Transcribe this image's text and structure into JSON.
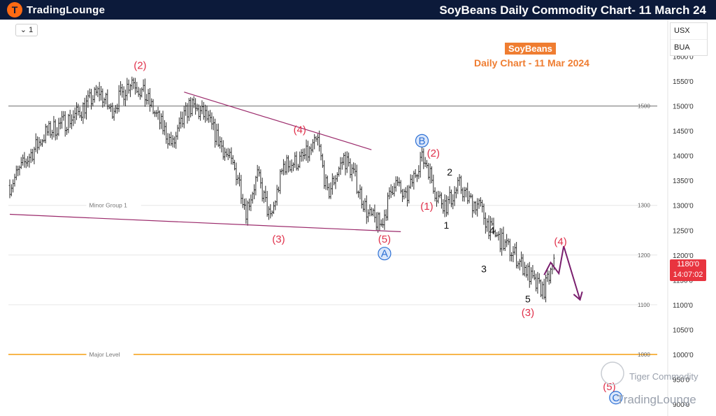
{
  "header": {
    "brand_badge": "T",
    "brand_name": "TradingLounge",
    "title": "SoyBeans Daily Commodity Chart- 11 March 24"
  },
  "toolbar": {
    "interval_label": "1",
    "currency": "USX",
    "source": "BUA"
  },
  "price_tag": {
    "price": "1180'0",
    "countdown": "14:07:02"
  },
  "annotation": {
    "title": "SoyBeans",
    "subtitle": "Daily Chart - 11 Mar 2024"
  },
  "watermark": {
    "line1": "Tiger Commodity",
    "line2": "TradingLounge"
  },
  "colors": {
    "candles": "#2b2b2b",
    "wave_red": "#e0304a",
    "wave_blue": "#2b6fd4",
    "wave_black": "#111111",
    "trendline": "#9b2a6b",
    "major_level": "#f5a623",
    "level_gray": "#8a8a8a",
    "arrow": "#7a1f6e"
  },
  "chart_data": {
    "type": "bar",
    "ylim": [
      885,
      1675
    ],
    "y_ticks": [
      {
        "v": 1650,
        "label": "1650"
      },
      {
        "v": 1600,
        "label": "1600'0"
      },
      {
        "v": 1550,
        "label": "1550'0"
      },
      {
        "v": 1500,
        "label": "1500'0"
      },
      {
        "v": 1450,
        "label": "1450'0"
      },
      {
        "v": 1400,
        "label": "1400'0"
      },
      {
        "v": 1350,
        "label": "1350'0"
      },
      {
        "v": 1300,
        "label": "1300'0"
      },
      {
        "v": 1250,
        "label": "1250'0"
      },
      {
        "v": 1200,
        "label": "1200'0"
      },
      {
        "v": 1150,
        "label": "1150'0"
      },
      {
        "v": 1100,
        "label": "1100'0"
      },
      {
        "v": 1050,
        "label": "1050'0"
      },
      {
        "v": 1000,
        "label": "1000'0"
      },
      {
        "v": 950,
        "label": "950'0"
      },
      {
        "v": 900,
        "label": "900'0"
      }
    ],
    "levels": [
      {
        "name": "",
        "value": 1500,
        "kind": "gray",
        "right_label": "1500",
        "label_bar": 38
      },
      {
        "name": "Minor Group 1",
        "value": 1300,
        "kind": "faint",
        "right_label": "1300",
        "label_bar": 38
      },
      {
        "name": "",
        "value": 1200,
        "kind": "faint",
        "right_label": "1200",
        "label_bar": 0
      },
      {
        "name": "",
        "value": 1100,
        "kind": "faint",
        "right_label": "1100",
        "label_bar": 0
      },
      {
        "name": "Major Level",
        "value": 1000,
        "kind": "major",
        "right_label": "1000",
        "label_bar": 38
      }
    ],
    "ohlc": {
      "start_bar": 0,
      "bar_step": 2.33,
      "key_closes": [
        [
          0,
          1340
        ],
        [
          10,
          1390
        ],
        [
          22,
          1445
        ],
        [
          40,
          1480
        ],
        [
          55,
          1530
        ],
        [
          62,
          1490
        ],
        [
          75,
          1555
        ],
        [
          85,
          1510
        ],
        [
          100,
          1420
        ],
        [
          105,
          1460
        ],
        [
          110,
          1500
        ],
        [
          120,
          1480
        ],
        [
          130,
          1420
        ],
        [
          140,
          1360
        ],
        [
          145,
          1290
        ],
        [
          152,
          1360
        ],
        [
          160,
          1270
        ],
        [
          168,
          1380
        ],
        [
          178,
          1390
        ],
        [
          185,
          1410
        ],
        [
          189,
          1430
        ],
        [
          195,
          1320
        ],
        [
          200,
          1360
        ],
        [
          205,
          1395
        ],
        [
          210,
          1370
        ],
        [
          220,
          1280
        ],
        [
          228,
          1260
        ],
        [
          236,
          1350
        ],
        [
          243,
          1310
        ],
        [
          252,
          1395
        ],
        [
          256,
          1385
        ],
        [
          262,
          1320
        ],
        [
          268,
          1300
        ],
        [
          276,
          1340
        ],
        [
          282,
          1310
        ],
        [
          288,
          1300
        ],
        [
          295,
          1250
        ],
        [
          304,
          1220
        ],
        [
          310,
          1200
        ],
        [
          318,
          1165
        ],
        [
          322,
          1140
        ],
        [
          328,
          1130
        ],
        [
          334,
          1180
        ]
      ]
    },
    "trendlines": [
      {
        "name": "upper",
        "from": [
          107,
          1528
        ],
        "to": [
          222,
          1412
        ]
      },
      {
        "name": "lower",
        "from": [
          0,
          1282
        ],
        "to": [
          240,
          1247
        ]
      }
    ],
    "wave_labels": [
      {
        "text": "(2)",
        "bar": 80,
        "v": 1582,
        "style": "red"
      },
      {
        "text": "(4)",
        "bar": 178,
        "v": 1452,
        "style": "red"
      },
      {
        "text": "(3)",
        "bar": 165,
        "v": 1232,
        "style": "red"
      },
      {
        "text": "(5)",
        "bar": 230,
        "v": 1232,
        "style": "red"
      },
      {
        "text": "A",
        "bar": 230,
        "v": 1203,
        "style": "blue"
      },
      {
        "text": "B",
        "bar": 253,
        "v": 1430,
        "style": "blue"
      },
      {
        "text": "(2)",
        "bar": 260,
        "v": 1405,
        "style": "red"
      },
      {
        "text": "(1)",
        "bar": 256,
        "v": 1298,
        "style": "red"
      },
      {
        "text": "2",
        "bar": 270,
        "v": 1367,
        "style": "black"
      },
      {
        "text": "1",
        "bar": 268,
        "v": 1260,
        "style": "black"
      },
      {
        "text": "4",
        "bar": 296,
        "v": 1250,
        "style": "black"
      },
      {
        "text": "3",
        "bar": 291,
        "v": 1172,
        "style": "black"
      },
      {
        "text": "5",
        "bar": 318,
        "v": 1112,
        "style": "black"
      },
      {
        "text": "(3)",
        "bar": 318,
        "v": 1084,
        "style": "red"
      },
      {
        "text": "(4)",
        "bar": 338,
        "v": 1227,
        "style": "red"
      },
      {
        "text": "(5)",
        "bar": 368,
        "v": 935,
        "style": "red"
      },
      {
        "text": "C",
        "bar": 372,
        "v": 913,
        "style": "blue"
      }
    ],
    "projection": [
      [
        328,
        1160
      ],
      [
        332,
        1185
      ],
      [
        337,
        1163
      ],
      [
        340,
        1218
      ],
      [
        350,
        1110
      ]
    ]
  }
}
